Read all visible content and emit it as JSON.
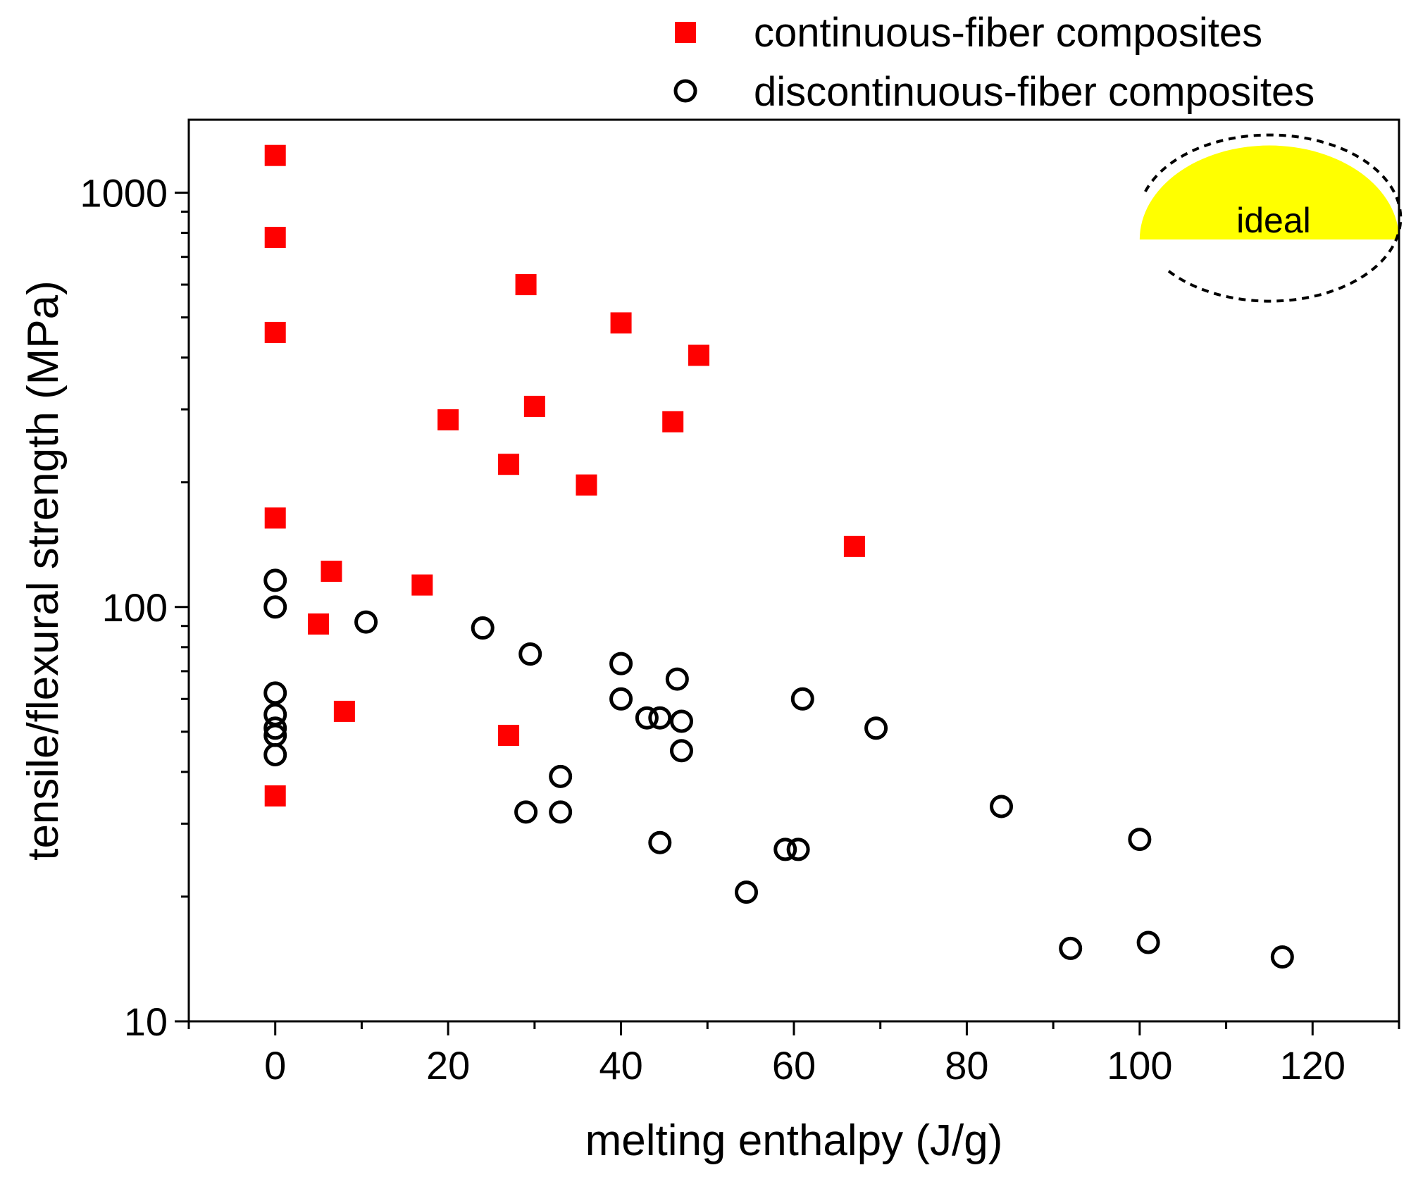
{
  "chart_data": {
    "type": "scatter",
    "xlabel": "melting enthalpy (J/g)",
    "ylabel": "tensile/flexural strength (MPa)",
    "x_scale": "linear",
    "y_scale": "log",
    "xlim": [
      -10,
      130
    ],
    "ylim": [
      10,
      1500
    ],
    "x_ticks": [
      0,
      20,
      40,
      60,
      80,
      100,
      120
    ],
    "x_tick_labels": [
      "0",
      "20",
      "40",
      "60",
      "80",
      "100",
      "120"
    ],
    "y_ticks": [
      10,
      100,
      1000
    ],
    "y_tick_labels": [
      "10",
      "100",
      "1000"
    ],
    "grid": false,
    "legend_position": "top-right",
    "annotation": {
      "text": "ideal",
      "x_range": [
        100,
        130
      ],
      "y_range": [
        550,
        1300
      ],
      "color": "#ffff00"
    },
    "series": [
      {
        "name": "continuous-fiber composites",
        "marker": "square",
        "color": "#ff0000",
        "points": [
          [
            0,
            1230
          ],
          [
            0,
            780
          ],
          [
            0,
            460
          ],
          [
            0,
            164
          ],
          [
            0,
            35
          ],
          [
            5,
            91
          ],
          [
            6.5,
            122
          ],
          [
            8,
            56
          ],
          [
            17,
            113
          ],
          [
            20,
            283
          ],
          [
            27,
            221
          ],
          [
            27,
            49
          ],
          [
            29,
            600
          ],
          [
            30,
            305
          ],
          [
            36,
            197
          ],
          [
            40,
            485
          ],
          [
            46,
            280
          ],
          [
            49,
            405
          ],
          [
            67,
            140
          ]
        ]
      },
      {
        "name": "discontinuous-fiber composites",
        "marker": "open-circle",
        "color": "#000000",
        "points": [
          [
            0,
            116
          ],
          [
            0,
            100
          ],
          [
            0,
            62
          ],
          [
            0,
            55
          ],
          [
            0,
            51
          ],
          [
            0,
            49
          ],
          [
            0,
            44
          ],
          [
            10.5,
            92
          ],
          [
            24,
            89
          ],
          [
            29.5,
            77
          ],
          [
            29,
            32
          ],
          [
            33,
            39
          ],
          [
            33,
            32
          ],
          [
            40,
            73
          ],
          [
            40,
            60
          ],
          [
            43,
            54
          ],
          [
            44.5,
            27
          ],
          [
            44.5,
            54
          ],
          [
            46.5,
            67
          ],
          [
            47,
            53
          ],
          [
            47,
            45
          ],
          [
            54.5,
            20.5
          ],
          [
            59,
            26
          ],
          [
            60.5,
            26
          ],
          [
            61,
            60
          ],
          [
            69.5,
            51
          ],
          [
            84,
            33
          ],
          [
            92,
            15
          ],
          [
            100,
            27.5
          ],
          [
            101,
            15.5
          ],
          [
            116.5,
            14.3
          ]
        ]
      }
    ]
  }
}
